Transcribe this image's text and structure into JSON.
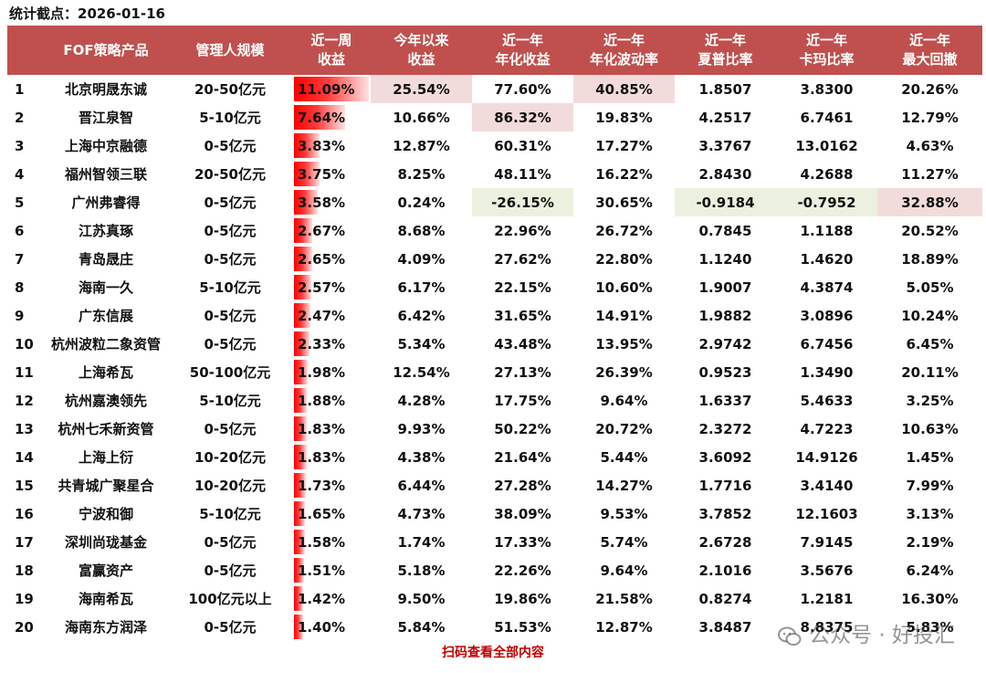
{
  "header": {
    "stat_date": "统计截点：2026-01-16"
  },
  "table": {
    "columns": [
      {
        "line1": "",
        "line2": ""
      },
      {
        "line1": "FOF策略产品",
        "line2": ""
      },
      {
        "line1": "管理人规模",
        "line2": ""
      },
      {
        "line1": "近一周",
        "line2": "收益"
      },
      {
        "line1": "今年以来",
        "line2": "收益"
      },
      {
        "line1": "近一年",
        "line2": "年化收益"
      },
      {
        "line1": "近一年",
        "line2": "年化波动率"
      },
      {
        "line1": "近一年",
        "line2": "夏普比率"
      },
      {
        "line1": "近一年",
        "line2": "卡玛比率"
      },
      {
        "line1": "近一年",
        "line2": "最大回撤"
      }
    ],
    "week_bar_max": 11.09,
    "rows": [
      {
        "rank": "1",
        "name": "北京明晟东诚",
        "scale": "20-50亿元",
        "week": "11.09%",
        "week_value": 11.09,
        "ytd": "25.54%",
        "ann_ret": "77.60%",
        "ann_vol": "40.85%",
        "sharpe": "1.8507",
        "calmar": "3.8300",
        "mdd": "20.26%",
        "highlights": {
          "ytd": "red",
          "ann_vol": "red"
        }
      },
      {
        "rank": "2",
        "name": "晋江泉智",
        "scale": "5-10亿元",
        "week": "7.64%",
        "week_value": 7.64,
        "ytd": "10.66%",
        "ann_ret": "86.32%",
        "ann_vol": "19.83%",
        "sharpe": "4.2517",
        "calmar": "6.7461",
        "mdd": "12.79%",
        "highlights": {
          "ann_ret": "red"
        }
      },
      {
        "rank": "3",
        "name": "上海中京融德",
        "scale": "0-5亿元",
        "week": "3.83%",
        "week_value": 3.83,
        "ytd": "12.87%",
        "ann_ret": "60.31%",
        "ann_vol": "17.27%",
        "sharpe": "3.3767",
        "calmar": "13.0162",
        "mdd": "4.63%",
        "highlights": {}
      },
      {
        "rank": "4",
        "name": "福州智领三联",
        "scale": "20-50亿元",
        "week": "3.75%",
        "week_value": 3.75,
        "ytd": "8.25%",
        "ann_ret": "48.11%",
        "ann_vol": "16.22%",
        "sharpe": "2.8430",
        "calmar": "4.2688",
        "mdd": "11.27%",
        "highlights": {}
      },
      {
        "rank": "5",
        "name": "广州弗睿得",
        "scale": "0-5亿元",
        "week": "3.58%",
        "week_value": 3.58,
        "ytd": "0.24%",
        "ann_ret": "-26.15%",
        "ann_vol": "30.65%",
        "sharpe": "-0.9184",
        "calmar": "-0.7952",
        "mdd": "32.88%",
        "highlights": {
          "ann_ret": "green",
          "sharpe": "green",
          "calmar": "green",
          "mdd": "red"
        }
      },
      {
        "rank": "6",
        "name": "江苏真琢",
        "scale": "0-5亿元",
        "week": "2.67%",
        "week_value": 2.67,
        "ytd": "8.68%",
        "ann_ret": "22.96%",
        "ann_vol": "26.72%",
        "sharpe": "0.7845",
        "calmar": "1.1188",
        "mdd": "20.52%",
        "highlights": {}
      },
      {
        "rank": "7",
        "name": "青岛晟庄",
        "scale": "0-5亿元",
        "week": "2.65%",
        "week_value": 2.65,
        "ytd": "4.09%",
        "ann_ret": "27.62%",
        "ann_vol": "22.80%",
        "sharpe": "1.1240",
        "calmar": "1.4620",
        "mdd": "18.89%",
        "highlights": {}
      },
      {
        "rank": "8",
        "name": "海南一久",
        "scale": "5-10亿元",
        "week": "2.57%",
        "week_value": 2.57,
        "ytd": "6.17%",
        "ann_ret": "22.15%",
        "ann_vol": "10.60%",
        "sharpe": "1.9007",
        "calmar": "4.3874",
        "mdd": "5.05%",
        "highlights": {}
      },
      {
        "rank": "9",
        "name": "广东信展",
        "scale": "0-5亿元",
        "week": "2.47%",
        "week_value": 2.47,
        "ytd": "6.42%",
        "ann_ret": "31.65%",
        "ann_vol": "14.91%",
        "sharpe": "1.9882",
        "calmar": "3.0896",
        "mdd": "10.24%",
        "highlights": {}
      },
      {
        "rank": "10",
        "name": "杭州波粒二象资管",
        "scale": "0-5亿元",
        "week": "2.33%",
        "week_value": 2.33,
        "ytd": "5.34%",
        "ann_ret": "43.48%",
        "ann_vol": "13.95%",
        "sharpe": "2.9742",
        "calmar": "6.7456",
        "mdd": "6.45%",
        "highlights": {}
      },
      {
        "rank": "11",
        "name": "上海希瓦",
        "scale": "50-100亿元",
        "week": "1.98%",
        "week_value": 1.98,
        "ytd": "12.54%",
        "ann_ret": "27.13%",
        "ann_vol": "26.39%",
        "sharpe": "0.9523",
        "calmar": "1.3490",
        "mdd": "20.11%",
        "highlights": {}
      },
      {
        "rank": "12",
        "name": "杭州嘉澳领先",
        "scale": "5-10亿元",
        "week": "1.88%",
        "week_value": 1.88,
        "ytd": "4.28%",
        "ann_ret": "17.75%",
        "ann_vol": "9.64%",
        "sharpe": "1.6337",
        "calmar": "5.4633",
        "mdd": "3.25%",
        "highlights": {}
      },
      {
        "rank": "13",
        "name": "杭州七禾新资管",
        "scale": "0-5亿元",
        "week": "1.83%",
        "week_value": 1.83,
        "ytd": "9.93%",
        "ann_ret": "50.22%",
        "ann_vol": "20.72%",
        "sharpe": "2.3272",
        "calmar": "4.7223",
        "mdd": "10.63%",
        "highlights": {}
      },
      {
        "rank": "14",
        "name": "上海上衍",
        "scale": "10-20亿元",
        "week": "1.83%",
        "week_value": 1.83,
        "ytd": "4.38%",
        "ann_ret": "21.64%",
        "ann_vol": "5.44%",
        "sharpe": "3.6092",
        "calmar": "14.9126",
        "mdd": "1.45%",
        "highlights": {}
      },
      {
        "rank": "15",
        "name": "共青城广聚星合",
        "scale": "10-20亿元",
        "week": "1.73%",
        "week_value": 1.73,
        "ytd": "6.44%",
        "ann_ret": "27.28%",
        "ann_vol": "14.27%",
        "sharpe": "1.7716",
        "calmar": "3.4140",
        "mdd": "7.99%",
        "highlights": {}
      },
      {
        "rank": "16",
        "name": "宁波和御",
        "scale": "5-10亿元",
        "week": "1.65%",
        "week_value": 1.65,
        "ytd": "4.73%",
        "ann_ret": "38.09%",
        "ann_vol": "9.53%",
        "sharpe": "3.7852",
        "calmar": "12.1603",
        "mdd": "3.13%",
        "highlights": {}
      },
      {
        "rank": "17",
        "name": "深圳尚珑基金",
        "scale": "0-5亿元",
        "week": "1.58%",
        "week_value": 1.58,
        "ytd": "1.74%",
        "ann_ret": "17.33%",
        "ann_vol": "5.74%",
        "sharpe": "2.6728",
        "calmar": "7.9145",
        "mdd": "2.19%",
        "highlights": {}
      },
      {
        "rank": "18",
        "name": "富赢资产",
        "scale": "0-5亿元",
        "week": "1.51%",
        "week_value": 1.51,
        "ytd": "5.18%",
        "ann_ret": "22.26%",
        "ann_vol": "9.64%",
        "sharpe": "2.1016",
        "calmar": "3.5676",
        "mdd": "6.24%",
        "highlights": {}
      },
      {
        "rank": "19",
        "name": "海南希瓦",
        "scale": "100亿元以上",
        "week": "1.42%",
        "week_value": 1.42,
        "ytd": "9.50%",
        "ann_ret": "19.86%",
        "ann_vol": "21.58%",
        "sharpe": "0.8274",
        "calmar": "1.2181",
        "mdd": "16.30%",
        "highlights": {}
      },
      {
        "rank": "20",
        "name": "海南东方润泽",
        "scale": "0-5亿元",
        "week": "1.40%",
        "week_value": 1.4,
        "ytd": "5.84%",
        "ann_ret": "51.53%",
        "ann_vol": "12.87%",
        "sharpe": "3.8487",
        "calmar": "8.8375",
        "mdd": "5.83%",
        "highlights": {}
      }
    ]
  },
  "footer": {
    "link_text": "扫码查看全部内容"
  },
  "watermark": {
    "text": "公众号 · 好投汇",
    "icon": "wechat-icon"
  },
  "colors": {
    "header_bg": "#c0504d",
    "bar": "#ff0000",
    "highlight_red": "#f2dcdb",
    "highlight_green": "#ebf1de",
    "footer_text": "#c00000"
  }
}
